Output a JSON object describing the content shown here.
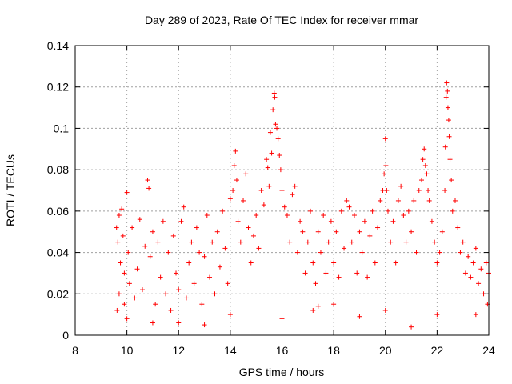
{
  "chart_data": {
    "type": "scatter",
    "title": "Day 289 of 2023, Rate Of TEC Index for receiver mmar",
    "xlabel": "GPS time / hours",
    "ylabel": "ROTI / TECUs",
    "xlim": [
      8,
      24
    ],
    "ylim": [
      0,
      0.14
    ],
    "xticks": [
      8,
      10,
      12,
      14,
      16,
      18,
      20,
      22,
      24
    ],
    "yticks": [
      0,
      0.02,
      0.04,
      0.06,
      0.08,
      0.1,
      0.12,
      0.14
    ],
    "xtick_labels": [
      "8",
      "10",
      "12",
      "14",
      "16",
      "18",
      "20",
      "22",
      "24"
    ],
    "ytick_labels": [
      "0",
      "0.02",
      "0.04",
      "0.06",
      "0.08",
      "0.1",
      "0.12",
      "0.14"
    ],
    "grid": true,
    "marker": "+",
    "color": "#ff0000",
    "series": [
      {
        "name": "ROTI",
        "points": [
          [
            9.6,
            0.052
          ],
          [
            9.65,
            0.045
          ],
          [
            9.7,
            0.058
          ],
          [
            9.75,
            0.035
          ],
          [
            9.8,
            0.061
          ],
          [
            9.85,
            0.048
          ],
          [
            9.9,
            0.03
          ],
          [
            9.7,
            0.02
          ],
          [
            9.62,
            0.012
          ],
          [
            9.9,
            0.015
          ],
          [
            10.0,
            0.069
          ],
          [
            10.05,
            0.04
          ],
          [
            10.1,
            0.025
          ],
          [
            10.2,
            0.052
          ],
          [
            10.3,
            0.018
          ],
          [
            10.4,
            0.032
          ],
          [
            10.5,
            0.056
          ],
          [
            10.6,
            0.022
          ],
          [
            10.7,
            0.043
          ],
          [
            10.8,
            0.075
          ],
          [
            10.85,
            0.071
          ],
          [
            10.9,
            0.038
          ],
          [
            11.0,
            0.05
          ],
          [
            11.1,
            0.015
          ],
          [
            11.2,
            0.045
          ],
          [
            11.3,
            0.028
          ],
          [
            11.4,
            0.055
          ],
          [
            11.5,
            0.02
          ],
          [
            11.6,
            0.04
          ],
          [
            11.7,
            0.012
          ],
          [
            11.8,
            0.048
          ],
          [
            11.9,
            0.03
          ],
          [
            12.0,
            0.022
          ],
          [
            12.1,
            0.055
          ],
          [
            12.2,
            0.062
          ],
          [
            12.3,
            0.018
          ],
          [
            12.4,
            0.035
          ],
          [
            12.5,
            0.045
          ],
          [
            12.6,
            0.025
          ],
          [
            12.7,
            0.052
          ],
          [
            12.8,
            0.04
          ],
          [
            12.9,
            0.015
          ],
          [
            13.0,
            0.038
          ],
          [
            13.1,
            0.058
          ],
          [
            13.2,
            0.028
          ],
          [
            13.3,
            0.045
          ],
          [
            13.4,
            0.02
          ],
          [
            13.5,
            0.05
          ],
          [
            13.6,
            0.033
          ],
          [
            13.7,
            0.06
          ],
          [
            13.8,
            0.042
          ],
          [
            13.9,
            0.025
          ],
          [
            14.0,
            0.066
          ],
          [
            14.1,
            0.07
          ],
          [
            14.15,
            0.082
          ],
          [
            14.2,
            0.089
          ],
          [
            14.25,
            0.075
          ],
          [
            14.3,
            0.055
          ],
          [
            14.4,
            0.045
          ],
          [
            14.5,
            0.065
          ],
          [
            14.6,
            0.078
          ],
          [
            14.7,
            0.052
          ],
          [
            14.8,
            0.035
          ],
          [
            14.9,
            0.048
          ],
          [
            15.0,
            0.058
          ],
          [
            15.1,
            0.042
          ],
          [
            15.2,
            0.07
          ],
          [
            15.3,
            0.063
          ],
          [
            15.4,
            0.085
          ],
          [
            15.45,
            0.081
          ],
          [
            15.5,
            0.072
          ],
          [
            15.55,
            0.098
          ],
          [
            15.6,
            0.088
          ],
          [
            15.65,
            0.109
          ],
          [
            15.7,
            0.117
          ],
          [
            15.72,
            0.115
          ],
          [
            15.75,
            0.102
          ],
          [
            15.8,
            0.1
          ],
          [
            15.85,
            0.095
          ],
          [
            15.9,
            0.087
          ],
          [
            15.95,
            0.08
          ],
          [
            16.0,
            0.07
          ],
          [
            16.1,
            0.062
          ],
          [
            16.2,
            0.058
          ],
          [
            16.3,
            0.045
          ],
          [
            16.4,
            0.068
          ],
          [
            16.5,
            0.072
          ],
          [
            16.6,
            0.04
          ],
          [
            16.7,
            0.055
          ],
          [
            16.8,
            0.05
          ],
          [
            16.9,
            0.03
          ],
          [
            17.0,
            0.045
          ],
          [
            17.1,
            0.06
          ],
          [
            17.2,
            0.035
          ],
          [
            17.3,
            0.025
          ],
          [
            17.4,
            0.05
          ],
          [
            17.5,
            0.04
          ],
          [
            17.6,
            0.058
          ],
          [
            17.7,
            0.03
          ],
          [
            17.8,
            0.045
          ],
          [
            17.9,
            0.055
          ],
          [
            18.0,
            0.035
          ],
          [
            18.1,
            0.05
          ],
          [
            18.2,
            0.028
          ],
          [
            18.3,
            0.06
          ],
          [
            18.4,
            0.042
          ],
          [
            18.5,
            0.065
          ],
          [
            18.6,
            0.062
          ],
          [
            18.7,
            0.045
          ],
          [
            18.8,
            0.058
          ],
          [
            18.9,
            0.03
          ],
          [
            19.0,
            0.05
          ],
          [
            19.1,
            0.04
          ],
          [
            19.2,
            0.055
          ],
          [
            19.3,
            0.028
          ],
          [
            19.4,
            0.048
          ],
          [
            19.5,
            0.06
          ],
          [
            19.6,
            0.035
          ],
          [
            19.7,
            0.052
          ],
          [
            19.8,
            0.065
          ],
          [
            19.9,
            0.07
          ],
          [
            19.95,
            0.078
          ],
          [
            20.0,
            0.095
          ],
          [
            20.02,
            0.082
          ],
          [
            20.05,
            0.07
          ],
          [
            20.1,
            0.06
          ],
          [
            20.2,
            0.045
          ],
          [
            20.3,
            0.055
          ],
          [
            20.4,
            0.035
          ],
          [
            20.5,
            0.065
          ],
          [
            20.6,
            0.072
          ],
          [
            20.7,
            0.058
          ],
          [
            20.8,
            0.045
          ],
          [
            20.9,
            0.06
          ],
          [
            21.0,
            0.05
          ],
          [
            21.1,
            0.065
          ],
          [
            21.2,
            0.04
          ],
          [
            21.3,
            0.07
          ],
          [
            21.4,
            0.075
          ],
          [
            21.45,
            0.085
          ],
          [
            21.5,
            0.09
          ],
          [
            21.55,
            0.082
          ],
          [
            21.6,
            0.078
          ],
          [
            21.65,
            0.07
          ],
          [
            21.7,
            0.065
          ],
          [
            21.8,
            0.055
          ],
          [
            21.9,
            0.045
          ],
          [
            22.0,
            0.035
          ],
          [
            22.1,
            0.04
          ],
          [
            22.2,
            0.05
          ],
          [
            22.3,
            0.07
          ],
          [
            22.32,
            0.091
          ],
          [
            22.35,
            0.115
          ],
          [
            22.37,
            0.122
          ],
          [
            22.4,
            0.118
          ],
          [
            22.42,
            0.11
          ],
          [
            22.45,
            0.104
          ],
          [
            22.47,
            0.096
          ],
          [
            22.5,
            0.085
          ],
          [
            22.55,
            0.075
          ],
          [
            22.6,
            0.06
          ],
          [
            22.7,
            0.065
          ],
          [
            22.8,
            0.052
          ],
          [
            22.9,
            0.04
          ],
          [
            23.0,
            0.045
          ],
          [
            23.1,
            0.03
          ],
          [
            23.2,
            0.038
          ],
          [
            23.3,
            0.028
          ],
          [
            23.4,
            0.035
          ],
          [
            23.5,
            0.042
          ],
          [
            23.6,
            0.025
          ],
          [
            23.7,
            0.032
          ],
          [
            23.8,
            0.02
          ],
          [
            23.9,
            0.035
          ],
          [
            24.0,
            0.03
          ],
          [
            23.95,
            0.015
          ],
          [
            23.5,
            0.01
          ],
          [
            22.0,
            0.01
          ],
          [
            20.0,
            0.012
          ],
          [
            18.0,
            0.015
          ],
          [
            16.0,
            0.008
          ],
          [
            14.0,
            0.01
          ],
          [
            12.0,
            0.006
          ],
          [
            10.0,
            0.008
          ],
          [
            17.2,
            0.012
          ],
          [
            17.4,
            0.014
          ],
          [
            13.0,
            0.005
          ],
          [
            21.0,
            0.004
          ],
          [
            11.0,
            0.006
          ],
          [
            19.0,
            0.009
          ]
        ]
      }
    ]
  }
}
